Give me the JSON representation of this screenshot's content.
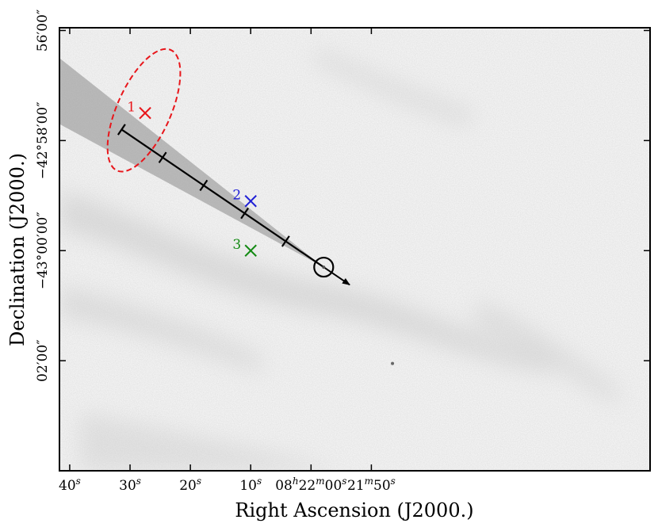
{
  "chart_data": {
    "type": "scatter",
    "title": "",
    "xlabel": "Right Ascension (J2000.)",
    "ylabel": "Declination (J2000.)",
    "x_units": "seconds of RA offset from 08h22m00s (negative = later RA)",
    "y_units": "arcminutes of Dec offset from -43°00'00\"",
    "xlim": [
      41.7,
      -56.2
    ],
    "ylim": [
      -4.0,
      4.05
    ],
    "grid": false,
    "x_ticks": [
      {
        "value": 40,
        "label": "40",
        "sup": "s",
        "post": ""
      },
      {
        "value": 30,
        "label": "30",
        "sup": "s",
        "post": ""
      },
      {
        "value": 20,
        "label": "20",
        "sup": "s",
        "post": ""
      },
      {
        "value": 10,
        "label": "10",
        "sup": "s",
        "post": ""
      },
      {
        "value": 0,
        "label": "08",
        "sup": "h",
        "post": "22",
        "sup2": "m",
        "post2": "00",
        "sup3": "s"
      },
      {
        "value": -10,
        "label": "21",
        "sup": "m",
        "post": "50",
        "sup2": "s"
      }
    ],
    "y_ticks": [
      {
        "value": 4,
        "label": "56′00″"
      },
      {
        "value": 2,
        "label": "−42°58′00″"
      },
      {
        "value": 0,
        "label": "−43°00′00″"
      },
      {
        "value": -2,
        "label": "02′00″"
      }
    ],
    "background": "grayscale sky image with faint diffuse nebulosity",
    "source": {
      "x": -2.1,
      "y": -0.3,
      "marker": "circle"
    },
    "trajectory": {
      "start": {
        "x": 31.4,
        "y": 2.2
      },
      "end": {
        "x": -2.1,
        "y": -0.3
      },
      "arrow_to": {
        "x": -6.4,
        "y": -0.62
      },
      "tick_positions": [
        31.4,
        24.6,
        17.8,
        11.0,
        4.2
      ],
      "cone_color": "#8a8a8a"
    },
    "error_ellipse": {
      "center": {
        "x": 27.7,
        "y": 2.55
      },
      "semi_axis_x_sec": 4.45,
      "semi_axis_y_arcmin": 1.2,
      "color": "#e8161b",
      "style": "dashed"
    },
    "candidates": [
      {
        "label": "1",
        "x": 27.5,
        "y": 2.5,
        "color": "#e8161b"
      },
      {
        "label": "2",
        "x": 10.0,
        "y": 0.9,
        "color": "#1f1fd6"
      },
      {
        "label": "3",
        "x": 10.0,
        "y": 0.0,
        "color": "#138a13"
      }
    ],
    "field_star": {
      "x": -13.5,
      "y": -2.05
    }
  }
}
